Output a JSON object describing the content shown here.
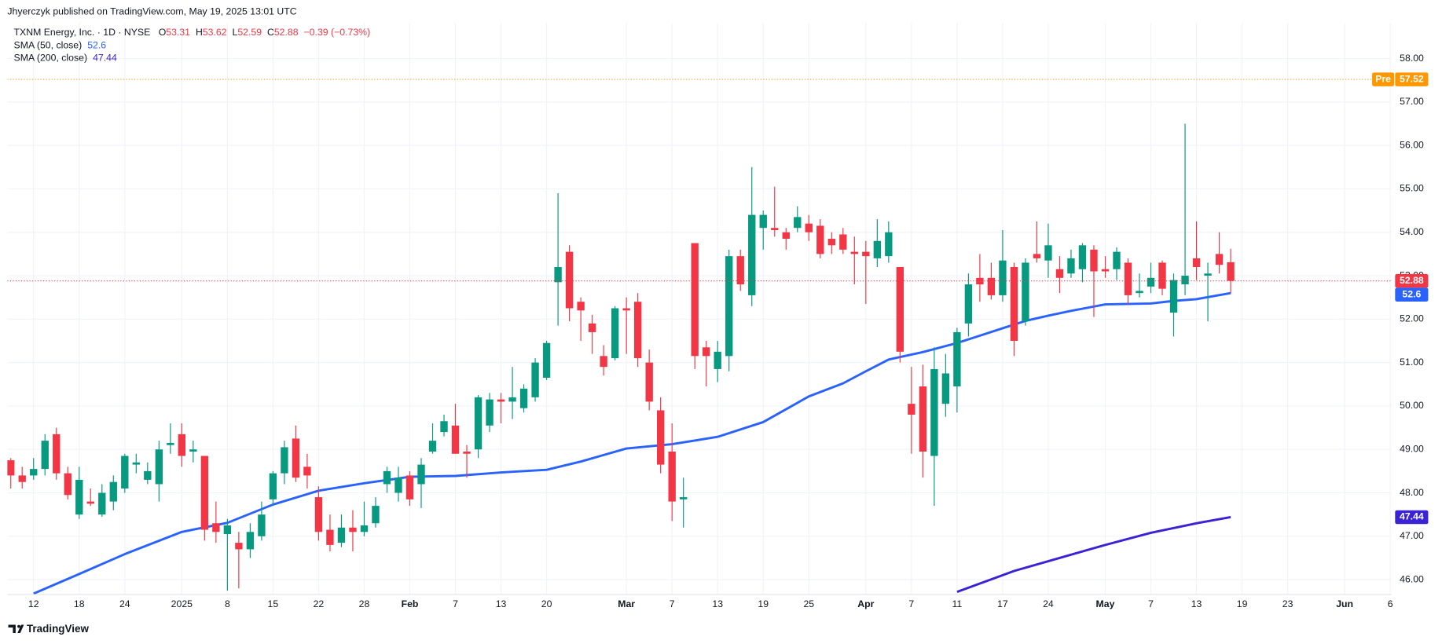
{
  "attribution": "Jhyerczyk published on TradingView.com, May 19, 2025 13:01 UTC",
  "brand": "TradingView",
  "chart_data": {
    "type": "candlestick",
    "title": "TXNM Energy, Inc. · 1D · NYSE",
    "ohlc_labels": [
      "O",
      "H",
      "L",
      "C"
    ],
    "change": "−0.39 (−0.73%)",
    "up_color": "#089981",
    "down_color": "#f23645",
    "open": [
      48.75,
      48.4,
      48.4,
      48.55,
      49.35,
      48.45,
      47.5,
      47.8,
      47.5,
      47.8,
      48.1,
      48.65,
      48.3,
      48.2,
      49.1,
      49.35,
      48.95,
      48.85,
      47.3,
      47.05,
      46.85,
      46.7,
      47.0,
      47.85,
      48.45,
      49.25,
      48.6,
      47.9,
      47.15,
      46.85,
      47.2,
      47.1,
      47.3,
      48.2,
      48.0,
      48.4,
      48.2,
      48.95,
      49.4,
      49.55,
      48.95,
      49.0,
      49.55,
      50.15,
      50.1,
      49.95,
      50.2,
      50.65,
      52.85,
      53.55,
      52.4,
      51.9,
      51.15,
      51.1,
      52.25,
      52.4,
      51.0,
      49.9,
      48.95,
      47.85,
      53.75,
      51.35,
      50.85,
      51.15,
      53.45,
      52.55,
      54.1,
      54.1,
      54.0,
      54.1,
      54.2,
      54.15,
      53.85,
      53.95,
      53.55,
      53.55,
      53.4,
      53.45,
      53.2,
      50.05,
      50.45,
      48.85,
      50.05,
      50.45,
      51.9,
      52.95,
      52.95,
      52.55,
      53.2,
      51.95,
      53.5,
      53.35,
      53.15,
      53.05,
      53.15,
      53.6,
      53.15,
      53.15,
      53.3,
      52.6,
      52.75,
      53.3,
      52.15,
      52.8,
      53.4,
      53.0,
      53.5,
      53.31
    ],
    "high": [
      48.8,
      48.6,
      48.8,
      49.35,
      49.5,
      48.6,
      48.6,
      48.1,
      48.2,
      48.4,
      48.9,
      48.9,
      48.7,
      49.2,
      49.6,
      49.6,
      49.2,
      48.85,
      47.8,
      47.4,
      47.1,
      47.3,
      47.8,
      48.5,
      49.2,
      49.55,
      48.9,
      48.15,
      47.5,
      47.5,
      47.6,
      47.8,
      47.9,
      48.6,
      48.6,
      48.5,
      48.8,
      49.6,
      49.8,
      50.05,
      49.1,
      50.25,
      50.3,
      50.3,
      50.9,
      50.5,
      51.1,
      51.5,
      54.9,
      53.7,
      52.5,
      52.1,
      51.4,
      52.3,
      52.5,
      52.6,
      51.3,
      50.2,
      49.6,
      48.35,
      53.75,
      51.5,
      51.5,
      53.6,
      53.6,
      55.5,
      54.5,
      55.05,
      54.1,
      54.6,
      54.4,
      54.3,
      54.0,
      54.1,
      53.9,
      53.8,
      54.3,
      54.25,
      53.2,
      50.9,
      50.95,
      51.35,
      51.2,
      51.8,
      53.05,
      53.5,
      53.3,
      54.05,
      53.3,
      53.4,
      54.25,
      54.2,
      53.45,
      53.6,
      53.75,
      53.7,
      53.45,
      53.65,
      53.4,
      53.05,
      53.3,
      53.35,
      53.05,
      56.5,
      54.25,
      53.3,
      54.0,
      53.62
    ],
    "low": [
      48.1,
      48.1,
      48.3,
      48.4,
      48.3,
      47.85,
      47.4,
      47.7,
      47.45,
      47.6,
      48.0,
      48.45,
      48.2,
      47.8,
      48.9,
      48.6,
      48.7,
      46.9,
      46.85,
      45.75,
      45.8,
      46.5,
      46.9,
      47.7,
      48.2,
      48.25,
      48.1,
      46.9,
      46.65,
      46.75,
      46.65,
      47.0,
      47.2,
      48.0,
      47.8,
      47.7,
      47.65,
      48.9,
      49.3,
      48.9,
      48.35,
      48.8,
      49.4,
      49.6,
      49.7,
      49.85,
      50.1,
      50.6,
      51.85,
      51.95,
      51.5,
      51.2,
      50.7,
      51.05,
      51.2,
      50.9,
      49.9,
      48.45,
      47.35,
      47.2,
      50.85,
      50.45,
      50.55,
      50.8,
      52.65,
      52.3,
      53.6,
      53.9,
      53.6,
      54.0,
      53.8,
      53.4,
      53.5,
      53.5,
      52.8,
      52.35,
      53.2,
      53.3,
      51.0,
      48.9,
      48.35,
      47.7,
      49.75,
      49.85,
      51.6,
      52.4,
      52.45,
      52.4,
      51.15,
      51.85,
      53.3,
      52.95,
      52.6,
      52.95,
      52.85,
      52.05,
      52.95,
      52.9,
      52.35,
      52.5,
      52.6,
      52.55,
      51.6,
      52.55,
      52.9,
      51.95,
      53.05,
      52.59
    ],
    "close": [
      48.4,
      48.25,
      48.55,
      49.2,
      48.45,
      47.95,
      48.3,
      47.75,
      48.0,
      48.25,
      48.85,
      48.7,
      48.5,
      49.0,
      49.15,
      48.85,
      49.0,
      47.15,
      47.1,
      47.25,
      46.7,
      47.1,
      47.5,
      48.45,
      49.05,
      48.35,
      48.4,
      47.1,
      46.8,
      47.2,
      47.1,
      47.25,
      47.7,
      48.5,
      48.35,
      47.85,
      48.65,
      49.2,
      49.65,
      48.9,
      48.9,
      50.2,
      50.15,
      50.1,
      50.2,
      50.4,
      51.0,
      51.45,
      53.2,
      52.25,
      52.2,
      51.7,
      50.9,
      52.25,
      52.2,
      51.1,
      50.1,
      48.65,
      47.8,
      47.9,
      51.15,
      51.15,
      51.25,
      53.45,
      52.8,
      54.4,
      54.4,
      54.05,
      53.85,
      54.35,
      54.0,
      53.5,
      53.7,
      53.6,
      53.5,
      53.45,
      53.8,
      54.0,
      51.25,
      49.8,
      48.95,
      50.85,
      50.75,
      51.7,
      52.8,
      52.8,
      52.55,
      53.35,
      51.5,
      53.3,
      53.4,
      53.7,
      52.95,
      53.4,
      53.7,
      53.1,
      53.1,
      53.55,
      52.55,
      52.65,
      52.95,
      52.7,
      52.9,
      53.0,
      53.2,
      53.05,
      53.25,
      52.88
    ],
    "series": [
      {
        "name": "SMA (50, close)",
        "color": "#2962ff",
        "x": [
          2,
          6,
          10,
          15,
          19,
          23,
          27,
          31,
          35,
          39,
          43,
          47,
          50,
          54,
          58,
          62,
          66,
          70,
          73,
          75,
          77,
          80,
          83,
          85,
          87,
          89,
          91,
          93,
          96,
          100,
          102,
          104,
          107
        ],
        "values": [
          45.68,
          46.13,
          46.59,
          47.1,
          47.31,
          47.73,
          48.05,
          48.22,
          48.37,
          48.39,
          48.47,
          48.53,
          48.72,
          49.02,
          49.12,
          49.29,
          49.63,
          50.22,
          50.52,
          50.8,
          51.07,
          51.24,
          51.45,
          51.62,
          51.79,
          51.96,
          52.08,
          52.19,
          52.34,
          52.36,
          52.42,
          52.46,
          52.6
        ]
      },
      {
        "name": "SMA (200, close)",
        "color": "#3a22d6",
        "x": [
          83,
          88,
          92,
          96,
          100,
          104,
          107
        ],
        "values": [
          45.72,
          46.2,
          46.5,
          46.8,
          47.08,
          47.3,
          47.44
        ]
      }
    ],
    "premarket": {
      "label": "Pre",
      "value": 57.52,
      "color": "#ff9800"
    },
    "xlim": [
      -0.3,
      121.1
    ],
    "ylim": [
      45.66,
      58.82
    ],
    "xticks": [
      {
        "value": 2,
        "label": "12"
      },
      {
        "value": 6,
        "label": "18"
      },
      {
        "value": 10,
        "label": "24"
      },
      {
        "value": 15,
        "label": "2025"
      },
      {
        "value": 19,
        "label": "8"
      },
      {
        "value": 23,
        "label": "15"
      },
      {
        "value": 27,
        "label": "22"
      },
      {
        "value": 31,
        "label": "28"
      },
      {
        "value": 35,
        "label": "Feb"
      },
      {
        "value": 39,
        "label": "7"
      },
      {
        "value": 43,
        "label": "13"
      },
      {
        "value": 47,
        "label": "20"
      },
      {
        "value": 54,
        "label": "Mar"
      },
      {
        "value": 58,
        "label": "7"
      },
      {
        "value": 62,
        "label": "13"
      },
      {
        "value": 66,
        "label": "19"
      },
      {
        "value": 70,
        "label": "25"
      },
      {
        "value": 75,
        "label": "Apr"
      },
      {
        "value": 79,
        "label": "7"
      },
      {
        "value": 83,
        "label": "11"
      },
      {
        "value": 87,
        "label": "17"
      },
      {
        "value": 91,
        "label": "24"
      },
      {
        "value": 96,
        "label": "May"
      },
      {
        "value": 100,
        "label": "7"
      },
      {
        "value": 104,
        "label": "13"
      },
      {
        "value": 108,
        "label": "19"
      },
      {
        "value": 112,
        "label": "23"
      },
      {
        "value": 117,
        "label": "Jun"
      },
      {
        "value": 121,
        "label": "6"
      }
    ],
    "yticks": [
      {
        "value": 46,
        "label": "46.00"
      },
      {
        "value": 47,
        "label": "47.00"
      },
      {
        "value": 48,
        "label": "48.00"
      },
      {
        "value": 49,
        "label": "49.00"
      },
      {
        "value": 50,
        "label": "50.00"
      },
      {
        "value": 51,
        "label": "51.00"
      },
      {
        "value": 52,
        "label": "52.00"
      },
      {
        "value": 53,
        "label": "53.00"
      },
      {
        "value": 54,
        "label": "54.00"
      },
      {
        "value": 55,
        "label": "55.00"
      },
      {
        "value": 56,
        "label": "56.00"
      },
      {
        "value": 57,
        "label": "57.00"
      },
      {
        "value": 58,
        "label": "58.00"
      }
    ],
    "grid": true
  }
}
